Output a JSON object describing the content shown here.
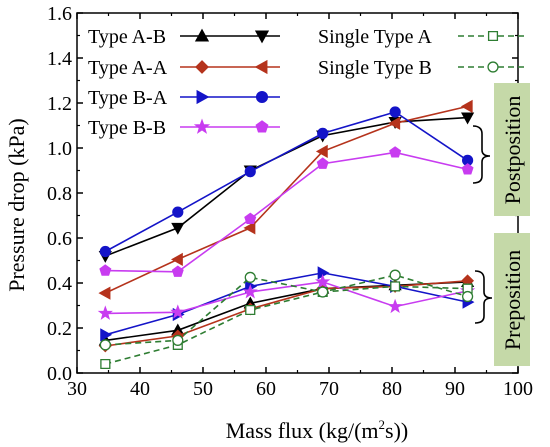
{
  "chart_data": {
    "type": "line",
    "xlabel_main": "Mass flux (kg/(m",
    "xlabel_sup": "2",
    "xlabel_tail": "s))",
    "ylabel": "Pressure drop (kPa)",
    "xlim": [
      30,
      100
    ],
    "ylim": [
      0.0,
      1.6
    ],
    "x_ticks": [
      "30",
      "40",
      "50",
      "60",
      "70",
      "80",
      "90",
      "100"
    ],
    "y_ticks": [
      "0.0",
      "0.2",
      "0.4",
      "0.6",
      "0.8",
      "1.0",
      "1.2",
      "1.4",
      "1.6"
    ],
    "annotations": {
      "postposition": "Postposition",
      "preposition": "Preposition"
    },
    "annotation_bg": "#c5d9a8",
    "series": [
      {
        "name": "Type A-B",
        "group": "postposition",
        "color": "#000000",
        "marker": "triangle-down",
        "dash": "solid",
        "x": [
          34.5,
          46,
          57.5,
          69,
          80.5,
          92
        ],
        "y": [
          0.52,
          0.645,
          0.9,
          1.055,
          1.115,
          1.135
        ]
      },
      {
        "name": "Type A-A",
        "group": "postposition",
        "color": "#b5331c",
        "marker": "triangle-left",
        "dash": "solid",
        "x": [
          34.5,
          46,
          57.5,
          69,
          80.5,
          92
        ],
        "y": [
          0.355,
          0.505,
          0.645,
          0.985,
          1.11,
          1.185
        ]
      },
      {
        "name": "Type B-A",
        "group": "postposition",
        "color": "#1414c8",
        "marker": "circle",
        "dash": "solid",
        "x": [
          34.5,
          46,
          57.5,
          69,
          80.5,
          92
        ],
        "y": [
          0.54,
          0.715,
          0.895,
          1.065,
          1.16,
          0.945
        ]
      },
      {
        "name": "Type B-B",
        "group": "postposition",
        "color": "#c83cf0",
        "marker": "pentagon",
        "dash": "solid",
        "x": [
          34.5,
          46,
          57.5,
          69,
          80.5,
          92
        ],
        "y": [
          0.455,
          0.45,
          0.685,
          0.93,
          0.98,
          0.905
        ]
      },
      {
        "name": "Type A-B",
        "group": "preposition",
        "color": "#000000",
        "marker": "triangle-up",
        "dash": "solid",
        "x": [
          34.5,
          46,
          57.5,
          69,
          80.5,
          92
        ],
        "y": [
          0.145,
          0.19,
          0.31,
          0.375,
          0.39,
          0.405
        ]
      },
      {
        "name": "Type A-A",
        "group": "preposition",
        "color": "#b5331c",
        "marker": "diamond",
        "dash": "solid",
        "x": [
          34.5,
          46,
          57.5,
          69,
          80.5,
          92
        ],
        "y": [
          0.12,
          0.165,
          0.285,
          0.375,
          0.385,
          0.41
        ]
      },
      {
        "name": "Type B-A",
        "group": "preposition",
        "color": "#1414c8",
        "marker": "triangle-right",
        "dash": "solid",
        "x": [
          34.5,
          46,
          57.5,
          69,
          80.5,
          92
        ],
        "y": [
          0.17,
          0.26,
          0.385,
          0.445,
          0.385,
          0.315
        ]
      },
      {
        "name": "Type B-B",
        "group": "preposition",
        "color": "#c83cf0",
        "marker": "star",
        "dash": "solid",
        "x": [
          34.5,
          46,
          57.5,
          69,
          80.5,
          92
        ],
        "y": [
          0.265,
          0.27,
          0.36,
          0.405,
          0.295,
          0.365
        ]
      },
      {
        "name": "Single Type A",
        "group": "single",
        "color": "#2e7d32",
        "marker": "square-open",
        "dash": "dashed",
        "x": [
          34.5,
          46,
          57.5,
          69,
          80.5,
          92
        ],
        "y": [
          0.04,
          0.125,
          0.28,
          0.36,
          0.385,
          0.375
        ]
      },
      {
        "name": "Single Type B",
        "group": "single",
        "color": "#2e7d32",
        "marker": "circle-open",
        "dash": "dashed",
        "x": [
          34.5,
          46,
          57.5,
          69,
          80.5,
          92
        ],
        "y": [
          0.125,
          0.145,
          0.425,
          0.36,
          0.435,
          0.34
        ]
      }
    ],
    "legend": [
      {
        "label": "Type A-B",
        "color": "#000000",
        "markers": [
          "triangle-up",
          "triangle-down"
        ],
        "dash": "solid"
      },
      {
        "label": "Type A-A",
        "color": "#b5331c",
        "markers": [
          "diamond",
          "triangle-left"
        ],
        "dash": "solid"
      },
      {
        "label": "Type B-A",
        "color": "#1414c8",
        "markers": [
          "triangle-right",
          "circle"
        ],
        "dash": "solid"
      },
      {
        "label": "Type B-B",
        "color": "#c83cf0",
        "markers": [
          "star",
          "pentagon"
        ],
        "dash": "solid"
      },
      {
        "label": "Single Type A",
        "color": "#2e7d32",
        "markers": [
          "square-open"
        ],
        "dash": "dashed"
      },
      {
        "label": "Single Type B",
        "color": "#2e7d32",
        "markers": [
          "circle-open"
        ],
        "dash": "dashed"
      }
    ]
  }
}
